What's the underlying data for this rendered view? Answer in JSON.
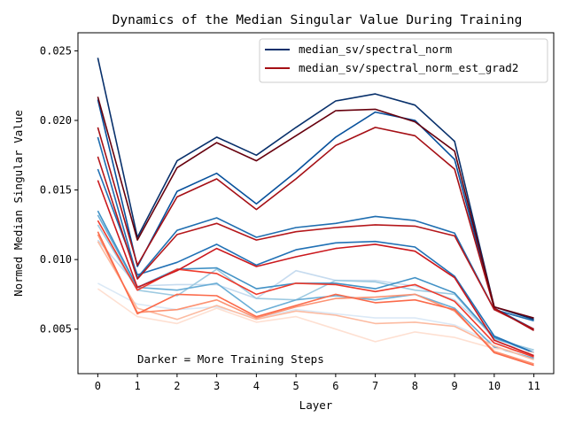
{
  "chart_data": {
    "type": "line",
    "title": "Dynamics of the Median Singular Value During Training",
    "xlabel": "Layer",
    "ylabel": "Normed Median Singular Value",
    "x": [
      0,
      1,
      2,
      3,
      4,
      5,
      6,
      7,
      8,
      9,
      10,
      11
    ],
    "xticks": [
      "0",
      "1",
      "2",
      "3",
      "4",
      "5",
      "6",
      "7",
      "8",
      "9",
      "10",
      "11"
    ],
    "yticks": [
      "0.005",
      "0.010",
      "0.015",
      "0.020",
      "0.025"
    ],
    "ytick_values": [
      0.005,
      0.01,
      0.015,
      0.02,
      0.025
    ],
    "xlim": [
      -0.5,
      11.5
    ],
    "ylim": [
      0.0018,
      0.0263
    ],
    "grid": false,
    "legend_position": "upper right",
    "legend": [
      {
        "label": "median_sv/spectral_norm",
        "color": "#08306b"
      },
      {
        "label": "median_sv/spectral_norm_est_grad2",
        "color": "#a50f15"
      }
    ],
    "annotation": "Darker = More Training Steps",
    "series": [
      {
        "group": "spectral_norm",
        "color": "#dbe9f6",
        "values": [
          0.0083,
          0.0068,
          0.0064,
          0.0066,
          0.0058,
          0.0064,
          0.0061,
          0.0058,
          0.0058,
          0.0053,
          0.004,
          0.0035
        ]
      },
      {
        "group": "spectral_norm",
        "color": "#c6dbef",
        "values": [
          0.0114,
          0.0081,
          0.0082,
          0.0082,
          0.0072,
          0.0092,
          0.0085,
          0.0085,
          0.0081,
          0.0071,
          0.0045,
          0.0033
        ]
      },
      {
        "group": "spectral_norm",
        "color": "#9ecae1",
        "values": [
          0.0125,
          0.0078,
          0.0074,
          0.0093,
          0.0072,
          0.0071,
          0.0085,
          0.0084,
          0.0078,
          0.0075,
          0.0043,
          0.0035
        ]
      },
      {
        "group": "spectral_norm",
        "color": "#6baed6",
        "values": [
          0.0132,
          0.008,
          0.0078,
          0.0083,
          0.0062,
          0.0071,
          0.0074,
          0.0071,
          0.0075,
          0.0065,
          0.0037,
          0.0029
        ]
      },
      {
        "group": "spectral_norm",
        "color": "#4292c6",
        "values": [
          0.0135,
          0.008,
          0.0093,
          0.0094,
          0.0079,
          0.0083,
          0.0083,
          0.0079,
          0.0087,
          0.0076,
          0.0044,
          0.0033
        ]
      },
      {
        "group": "spectral_norm",
        "color": "#2171b5",
        "values": [
          0.0165,
          0.0089,
          0.0098,
          0.0111,
          0.0096,
          0.0107,
          0.0112,
          0.0113,
          0.0109,
          0.0088,
          0.0045,
          0.0033
        ]
      },
      {
        "group": "spectral_norm",
        "color": "#1f6eb0",
        "values": [
          0.0188,
          0.0087,
          0.0121,
          0.013,
          0.0116,
          0.0123,
          0.0126,
          0.0131,
          0.0128,
          0.0119,
          0.0064,
          0.0056
        ]
      },
      {
        "group": "spectral_norm",
        "color": "#08519c",
        "values": [
          0.0215,
          0.0095,
          0.0149,
          0.0162,
          0.014,
          0.0163,
          0.0188,
          0.0206,
          0.02,
          0.0172,
          0.0065,
          0.005
        ]
      },
      {
        "group": "spectral_norm",
        "color": "#08306b",
        "values": [
          0.0245,
          0.0116,
          0.0171,
          0.0188,
          0.0175,
          0.0195,
          0.0214,
          0.0219,
          0.0211,
          0.0185,
          0.0066,
          0.0057
        ]
      },
      {
        "group": "spectral_norm_est_grad2",
        "color": "#fee0d2",
        "values": [
          0.0079,
          0.0059,
          0.0054,
          0.0065,
          0.0055,
          0.0059,
          0.005,
          0.0041,
          0.0048,
          0.0044,
          0.0036,
          0.0033
        ]
      },
      {
        "group": "spectral_norm_est_grad2",
        "color": "#fcbba1",
        "values": [
          0.0113,
          0.0065,
          0.0057,
          0.0067,
          0.0057,
          0.0063,
          0.006,
          0.0054,
          0.0055,
          0.0052,
          0.0038,
          0.0028
        ]
      },
      {
        "group": "spectral_norm_est_grad2",
        "color": "#fc9272",
        "values": [
          0.0118,
          0.0062,
          0.0064,
          0.0071,
          0.0058,
          0.0066,
          0.0072,
          0.0073,
          0.0075,
          0.0063,
          0.0034,
          0.0025
        ]
      },
      {
        "group": "spectral_norm_est_grad2",
        "color": "#fb6a4a",
        "values": [
          0.012,
          0.0061,
          0.0075,
          0.0074,
          0.0059,
          0.0067,
          0.0075,
          0.0069,
          0.0071,
          0.0064,
          0.0033,
          0.0024
        ]
      },
      {
        "group": "spectral_norm_est_grad2",
        "color": "#ef3b2c",
        "values": [
          0.0128,
          0.0078,
          0.0093,
          0.009,
          0.0075,
          0.0083,
          0.0082,
          0.0077,
          0.0082,
          0.007,
          0.004,
          0.003
        ]
      },
      {
        "group": "spectral_norm_est_grad2",
        "color": "#cb181d",
        "values": [
          0.0157,
          0.008,
          0.0092,
          0.0108,
          0.0095,
          0.0102,
          0.0108,
          0.0111,
          0.0106,
          0.0087,
          0.0042,
          0.0031
        ]
      },
      {
        "group": "spectral_norm_est_grad2",
        "color": "#b5171b",
        "values": [
          0.0174,
          0.0086,
          0.0118,
          0.0126,
          0.0114,
          0.012,
          0.0123,
          0.0125,
          0.0124,
          0.0117,
          0.0064,
          0.005
        ]
      },
      {
        "group": "spectral_norm_est_grad2",
        "color": "#a50f15",
        "values": [
          0.0195,
          0.0096,
          0.0145,
          0.0158,
          0.0136,
          0.0158,
          0.0182,
          0.0195,
          0.0189,
          0.0165,
          0.0065,
          0.0049
        ]
      },
      {
        "group": "spectral_norm_est_grad2",
        "color": "#67000d",
        "values": [
          0.0217,
          0.0114,
          0.0166,
          0.0184,
          0.0171,
          0.0189,
          0.0207,
          0.0208,
          0.0199,
          0.0178,
          0.0066,
          0.0058
        ]
      }
    ]
  }
}
